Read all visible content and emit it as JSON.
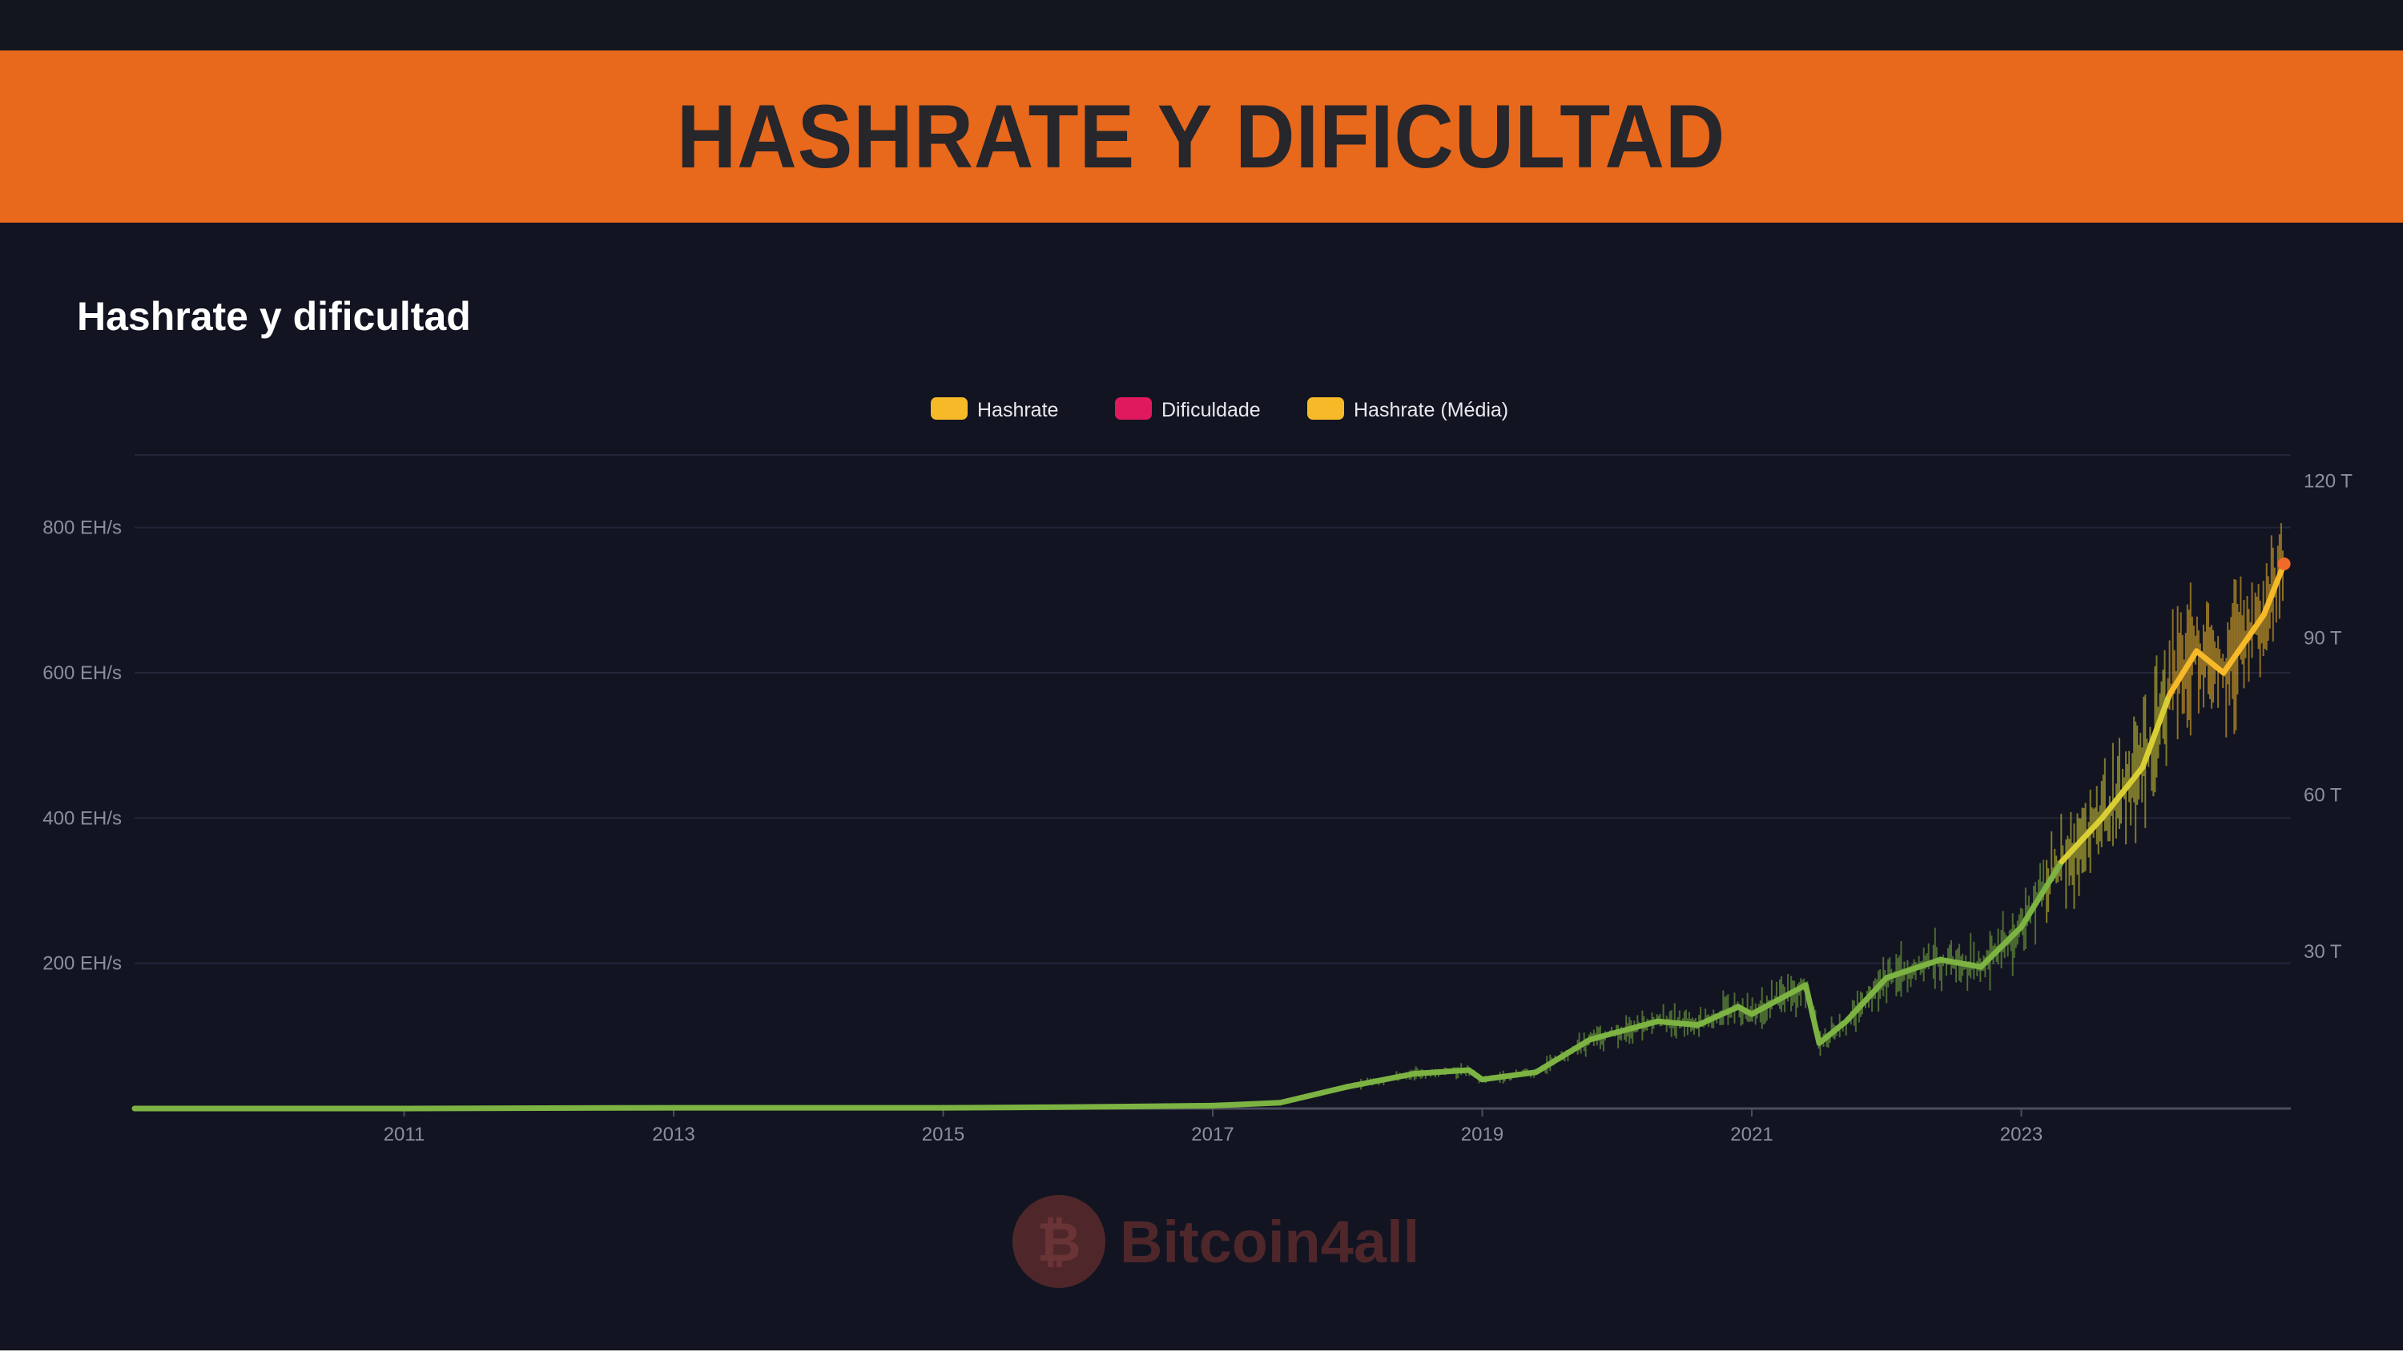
{
  "banner": {
    "title": "HASHRATE Y DIFICULTAD"
  },
  "colors": {
    "banner_bg": "#e8681c",
    "background": "#121421",
    "hashrate": "#f6b928",
    "difficulty": "#e0195f",
    "hashrate_avg": "#f6b928",
    "early_line": "#7cb342"
  },
  "watermark": {
    "text": "Bitcoin4all",
    "icon": "bitcoin-logo-icon"
  },
  "chart_data": {
    "type": "line",
    "title": "Hashrate y dificultad",
    "legend": {
      "placement": "top-center",
      "items": [
        {
          "name": "Hashrate",
          "color": "#f6b928"
        },
        {
          "name": "Dificuldade",
          "color": "#e0195f"
        },
        {
          "name": "Hashrate (Média)",
          "color": "#f6b928"
        }
      ]
    },
    "grid": true,
    "x_range": [
      2009.0,
      2025.0
    ],
    "x_ticks": [
      "2011",
      "2013",
      "2015",
      "2017",
      "2019",
      "2021",
      "2023"
    ],
    "y_left": {
      "unit": "EH/s",
      "range": [
        0,
        900
      ],
      "ticks": [
        "200 EH/s",
        "400 EH/s",
        "600 EH/s",
        "800 EH/s"
      ],
      "tick_values": [
        200,
        400,
        600,
        800
      ]
    },
    "y_right": {
      "unit": "T",
      "range": [
        0,
        125
      ],
      "ticks": [
        "30 T",
        "60 T",
        "90 T",
        "120 T"
      ],
      "tick_values": [
        30,
        60,
        90,
        120
      ]
    },
    "series": [
      {
        "name": "Hashrate (Média)",
        "axis": "left",
        "x": [
          2009.0,
          2011.0,
          2013.0,
          2015.0,
          2016.0,
          2017.0,
          2017.5,
          2018.0,
          2018.5,
          2018.9,
          2019.0,
          2019.4,
          2019.8,
          2020.0,
          2020.3,
          2020.6,
          2020.9,
          2021.0,
          2021.3,
          2021.4,
          2021.5,
          2021.7,
          2022.0,
          2022.4,
          2022.7,
          2023.0,
          2023.3,
          2023.6,
          2023.9,
          2024.1,
          2024.3,
          2024.5,
          2024.8,
          2024.95
        ],
        "y": [
          0,
          0,
          1,
          1,
          2,
          4,
          8,
          30,
          48,
          53,
          40,
          50,
          95,
          105,
          120,
          115,
          140,
          130,
          160,
          170,
          90,
          120,
          180,
          205,
          195,
          250,
          340,
          400,
          470,
          570,
          630,
          600,
          680,
          750
        ]
      },
      {
        "name": "Dificuldade",
        "axis": "right",
        "x": [
          2009.0,
          2011.0,
          2013.0,
          2015.0,
          2016.0,
          2017.0,
          2017.5,
          2018.0,
          2018.5,
          2018.9,
          2019.0,
          2019.4,
          2019.8,
          2020.0,
          2020.3,
          2020.6,
          2020.9,
          2021.0,
          2021.3,
          2021.4,
          2021.5,
          2021.7,
          2022.0,
          2022.4,
          2022.7,
          2023.0,
          2023.3,
          2023.6,
          2023.9,
          2024.1,
          2024.3,
          2024.5,
          2024.8,
          2024.95
        ],
        "y": [
          0,
          0,
          0.1,
          0.2,
          0.3,
          0.6,
          1.1,
          4.2,
          6.7,
          7.4,
          5.6,
          6.9,
          13.2,
          14.6,
          16.7,
          16.0,
          19.4,
          18.1,
          22.2,
          23.6,
          12.5,
          16.7,
          25.0,
          28.5,
          27.1,
          34.7,
          47.2,
          55.6,
          65.3,
          79.2,
          87.5,
          83.3,
          94.4,
          104.2
        ]
      }
    ]
  }
}
